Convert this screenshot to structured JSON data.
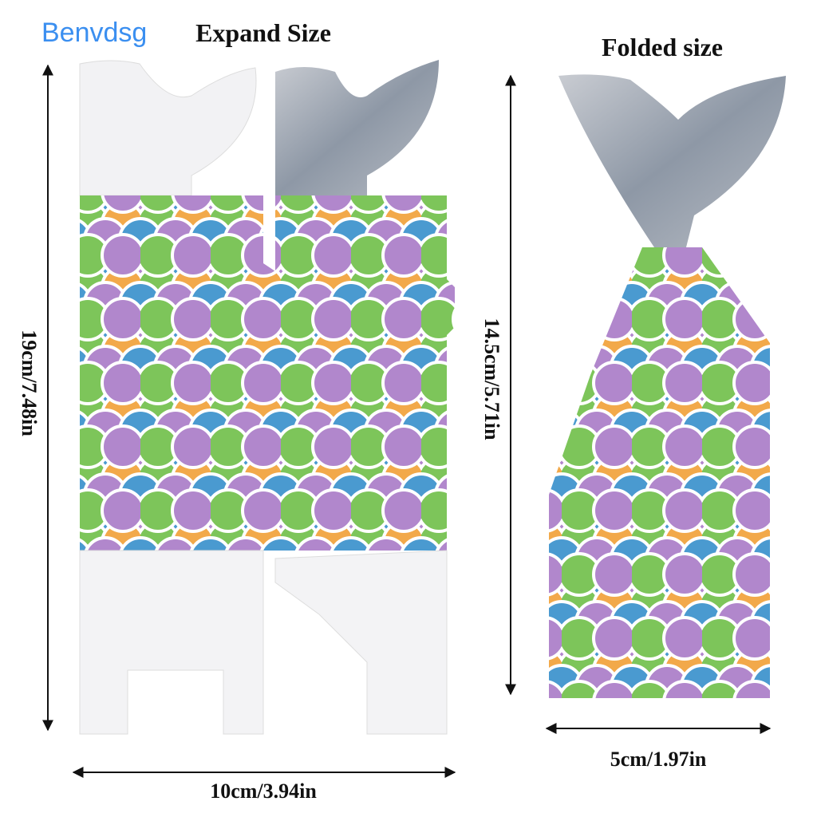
{
  "brand": "Benvdsg",
  "expand": {
    "title": "Expand Size",
    "height": "19cm/7.48in",
    "width": "10cm/3.94in"
  },
  "folded": {
    "title": "Folded size",
    "height": "14.5cm/5.71in",
    "width": "5cm/1.97in"
  }
}
